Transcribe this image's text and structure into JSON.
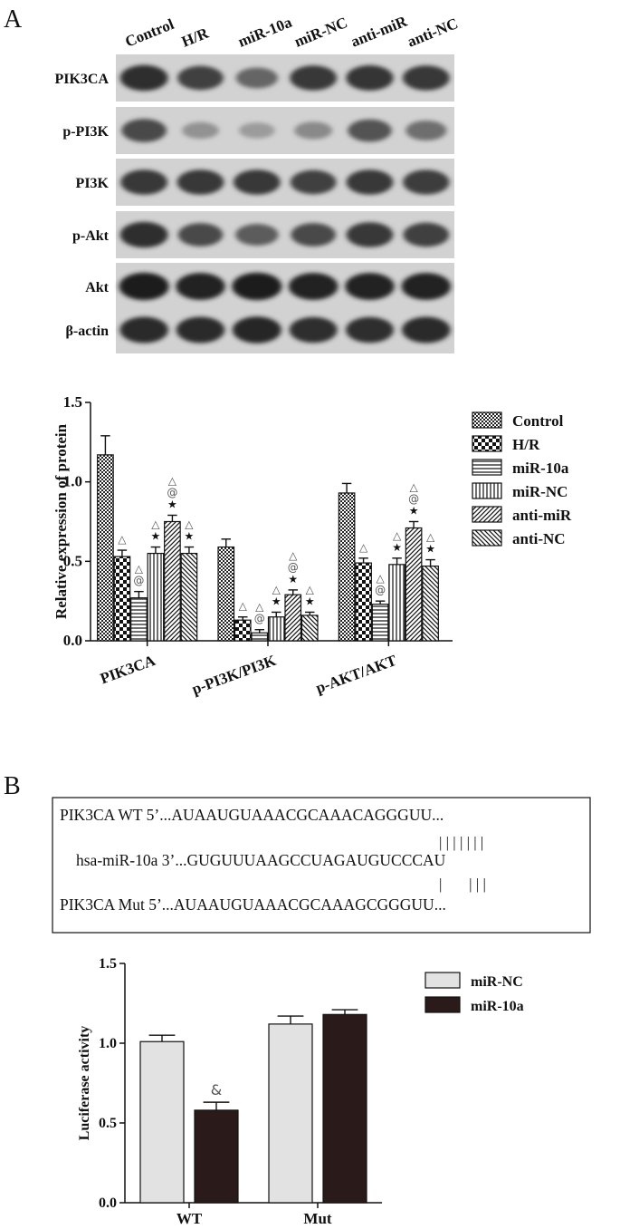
{
  "panel_a": {
    "letter": "A",
    "blot": {
      "lanes": [
        "Control",
        "H/R",
        "miR-10a",
        "miR-NC",
        "anti-miR",
        "anti-NC"
      ],
      "rows": [
        {
          "label": "PIK3CA",
          "intensity": [
            0.85,
            0.75,
            0.55,
            0.8,
            0.82,
            0.8
          ]
        },
        {
          "label": "p-PI3K",
          "intensity": [
            0.7,
            0.3,
            0.25,
            0.35,
            0.65,
            0.5
          ]
        },
        {
          "label": "PI3K",
          "intensity": [
            0.8,
            0.8,
            0.8,
            0.75,
            0.8,
            0.78
          ]
        },
        {
          "label": "p-Akt",
          "intensity": [
            0.85,
            0.7,
            0.6,
            0.7,
            0.8,
            0.75
          ]
        },
        {
          "label": "Akt",
          "intensity": [
            0.95,
            0.92,
            0.95,
            0.92,
            0.92,
            0.92
          ]
        },
        {
          "label": "β-actin",
          "intensity": [
            0.88,
            0.88,
            0.9,
            0.85,
            0.85,
            0.88
          ]
        }
      ]
    }
  },
  "chart_data": [
    {
      "type": "bar",
      "ylabel": "Relative expression of protein",
      "ylim": [
        0,
        1.5
      ],
      "yticks": [
        "0.0",
        "0.5",
        "1.0",
        "1.5"
      ],
      "categories": [
        "PIK3CA",
        "p-PI3K/PI3K",
        "p-AKT/AKT"
      ],
      "legend": "right",
      "series": [
        {
          "name": "Control",
          "pattern": "checker",
          "values": [
            1.17,
            0.59,
            0.93
          ],
          "errors": [
            0.12,
            0.05,
            0.06
          ],
          "annotations": [
            [],
            [],
            []
          ]
        },
        {
          "name": "H/R",
          "pattern": "bigcheck",
          "values": [
            0.53,
            0.13,
            0.49
          ],
          "errors": [
            0.04,
            0.02,
            0.03
          ],
          "annotations": [
            [
              "△"
            ],
            [
              "△"
            ],
            [
              "△"
            ]
          ]
        },
        {
          "name": "miR-10a",
          "pattern": "hlines",
          "values": [
            0.27,
            0.05,
            0.23
          ],
          "errors": [
            0.04,
            0.02,
            0.02
          ],
          "annotations": [
            [
              "△",
              "@"
            ],
            [
              "△",
              "@"
            ],
            [
              "△",
              "@"
            ]
          ]
        },
        {
          "name": "miR-NC",
          "pattern": "vlines",
          "values": [
            0.55,
            0.15,
            0.48
          ],
          "errors": [
            0.04,
            0.03,
            0.04
          ],
          "annotations": [
            [
              "△",
              "★"
            ],
            [
              "△",
              "★"
            ],
            [
              "△",
              "★"
            ]
          ]
        },
        {
          "name": "anti-miR",
          "pattern": "diag",
          "values": [
            0.75,
            0.29,
            0.71
          ],
          "errors": [
            0.04,
            0.03,
            0.04
          ],
          "annotations": [
            [
              "△",
              "@",
              "★"
            ],
            [
              "△",
              "@",
              "★"
            ],
            [
              "△",
              "@",
              "★"
            ]
          ]
        },
        {
          "name": "anti-NC",
          "pattern": "antidiag",
          "values": [
            0.55,
            0.16,
            0.47
          ],
          "errors": [
            0.04,
            0.02,
            0.04
          ],
          "annotations": [
            [
              "△",
              "★"
            ],
            [
              "△",
              "★"
            ],
            [
              "△",
              "★"
            ]
          ]
        }
      ]
    },
    {
      "type": "bar",
      "ylabel": "Luciferase activity",
      "ylim": [
        0,
        1.5
      ],
      "yticks": [
        "0.0",
        "0.5",
        "1.0",
        "1.5"
      ],
      "categories": [
        "WT",
        "Mut"
      ],
      "legend": "right",
      "series": [
        {
          "name": "miR-NC",
          "color": "#e2e2e2",
          "values": [
            1.01,
            1.12
          ],
          "errors": [
            0.04,
            0.05
          ],
          "annotations": [
            [],
            []
          ]
        },
        {
          "name": "miR-10a",
          "color": "#2b1a1a",
          "values": [
            0.58,
            1.18
          ],
          "errors": [
            0.05,
            0.03
          ],
          "annotations": [
            [
              "&"
            ],
            []
          ]
        }
      ]
    }
  ],
  "panel_b": {
    "letter": "B",
    "sequence_box": {
      "lines": [
        "PIK3CA WT 5’...AUAAUGUAAACGCAAACAGGGUU...",
        "hsa-miR-10a 3’...GUGUUUAAGCCUAGAUGUCCCAU",
        "PIK3CA Mut 5’...AUAAUGUAAACGCAAAGCGGGUU..."
      ],
      "pairing_top": "| | | | | | |",
      "pairing_bottom": "|       | | |"
    }
  }
}
